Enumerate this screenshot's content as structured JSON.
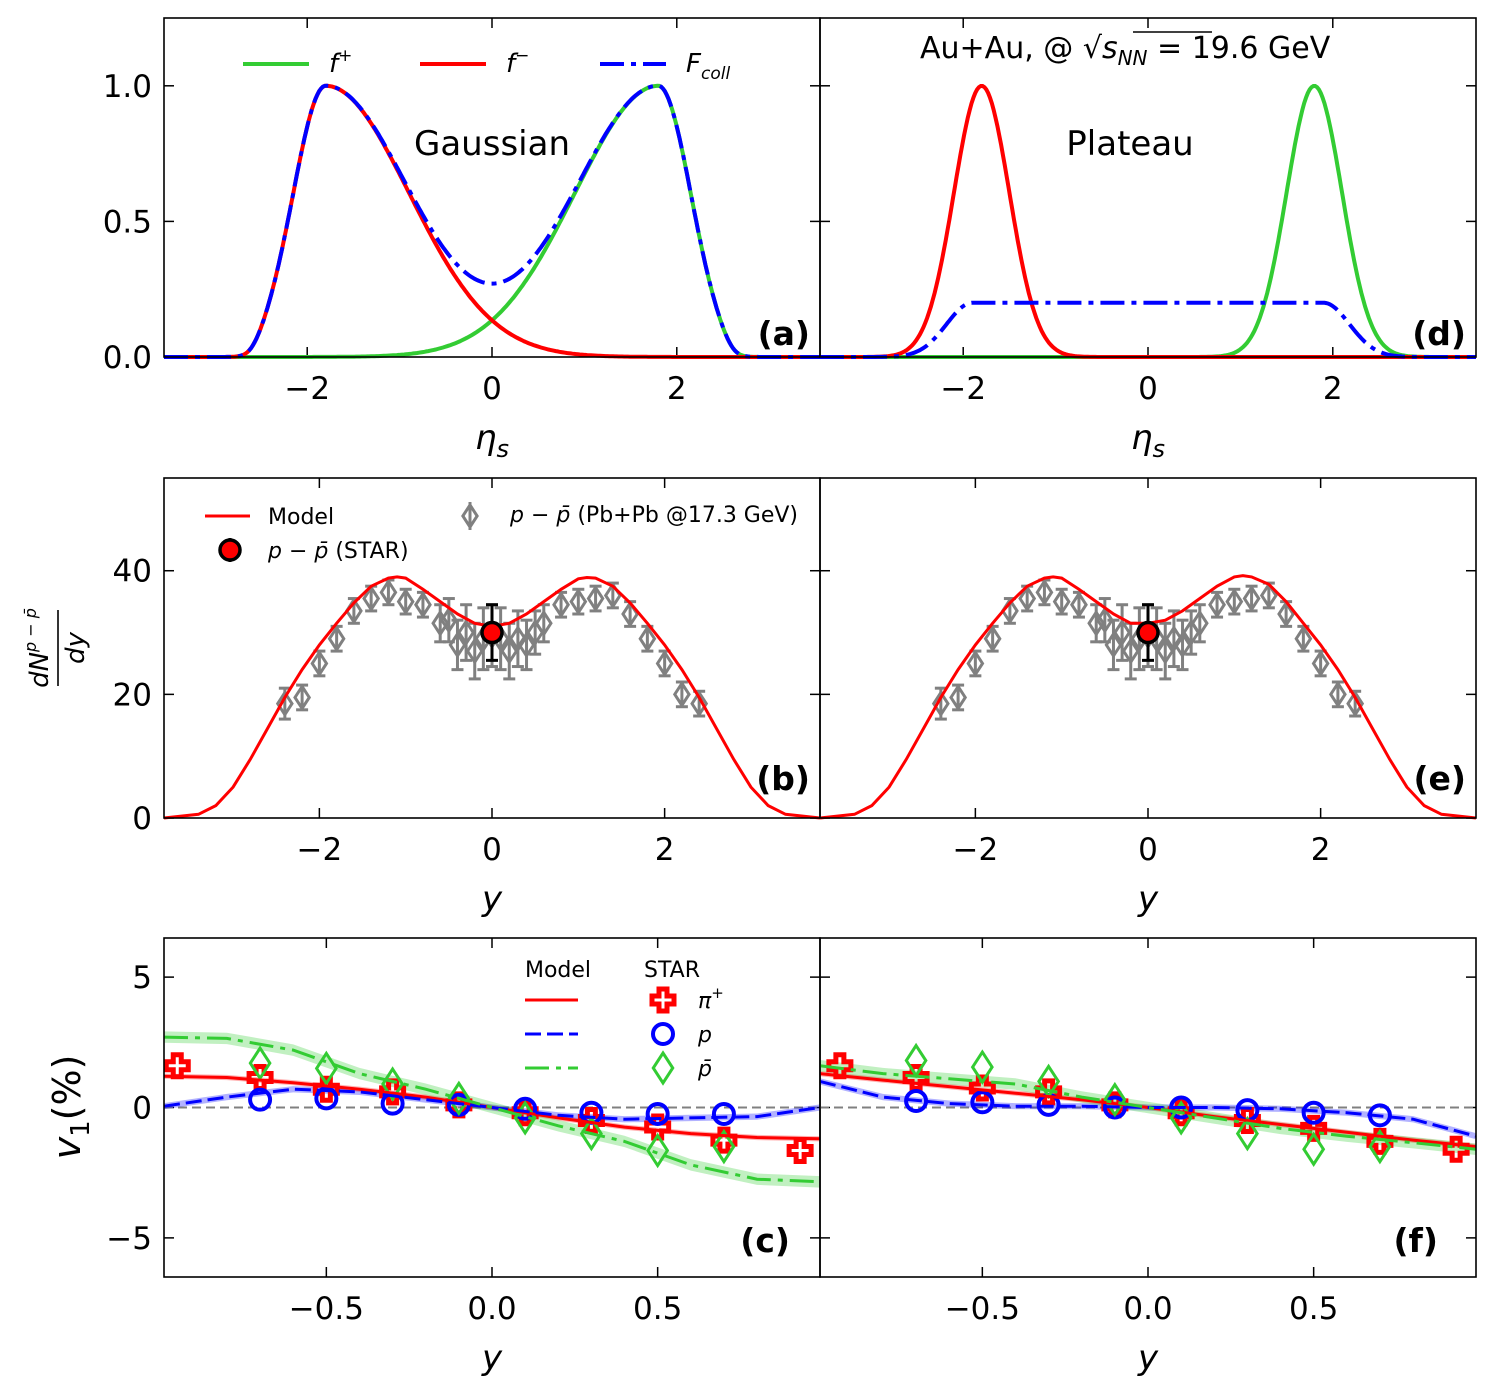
{
  "figure": {
    "title_annotation": "Au+Au, @ √s_NN = 19.6 GeV",
    "title_parts": {
      "prefix": "Au+Au, @ ",
      "sqrt": "√",
      "s": "s",
      "sub": "NN",
      "suffix": " = 19.6 GeV"
    },
    "colors": {
      "f_plus": "#33cc33",
      "f_minus": "#ff0000",
      "f_coll": "#0000ff",
      "sps": "#808080",
      "star_dot": "#ff0000",
      "proton": "#0000ff",
      "pion": "#ff0000",
      "pbar": "#33cc33"
    }
  },
  "chart_data": [
    {
      "id": "a",
      "type": "line",
      "panel_label": "(a)",
      "annotation": "Gaussian",
      "xlabel": "η_s",
      "xlabel_main": "η",
      "xlabel_sub": "s",
      "ylabel": "",
      "xlim": [
        -3.55,
        3.55
      ],
      "ylim": [
        0,
        1.25
      ],
      "xticks": [
        -2,
        0,
        2
      ],
      "yticks": [
        0.0,
        0.5,
        1.0
      ],
      "xtick_labels": [
        "−2",
        "0",
        "2"
      ],
      "ytick_labels": [
        "0.0",
        "0.5",
        "1.0"
      ],
      "legend": [
        {
          "label": "f⁺",
          "main": "f",
          "sup": "+",
          "style": "solid",
          "color": "#33cc33"
        },
        {
          "label": "f⁻",
          "main": "f",
          "sup": "−",
          "style": "solid",
          "color": "#ff0000"
        },
        {
          "label": "F_coll",
          "main": "F",
          "sub": "coll",
          "style": "dashdot",
          "color": "#0000ff"
        }
      ],
      "series": [
        {
          "name": "f+",
          "profile": "gaussian",
          "sign": 1,
          "peak": 1.8,
          "inner_width": 0.9,
          "outer_width": 0.35,
          "cut": 2.6
        },
        {
          "name": "f-",
          "profile": "gaussian",
          "sign": -1,
          "peak": 1.8,
          "inner_width": 0.9,
          "outer_width": 0.35,
          "cut": 2.6
        },
        {
          "name": "F_coll",
          "profile": "sum"
        }
      ]
    },
    {
      "id": "d",
      "type": "line",
      "panel_label": "(d)",
      "annotation": "Plateau",
      "xlabel": "η_s",
      "xlabel_main": "η",
      "xlabel_sub": "s",
      "xlim": [
        -3.55,
        3.55
      ],
      "ylim": [
        0,
        1.25
      ],
      "xticks": [
        -2,
        0,
        2
      ],
      "yticks": [
        0.0,
        0.5,
        1.0
      ],
      "xtick_labels": [
        "−2",
        "0",
        "2"
      ],
      "series": [
        {
          "name": "f+",
          "profile": "narrow",
          "sign": 1,
          "peak": 1.8,
          "width": 0.3
        },
        {
          "name": "f-",
          "profile": "narrow",
          "sign": -1,
          "peak": 1.8,
          "width": 0.3
        },
        {
          "name": "F_coll",
          "profile": "plateau",
          "height": 0.2,
          "flat_edge": 1.9,
          "fall": 0.28
        }
      ]
    },
    {
      "id": "b",
      "type": "line",
      "panel_label": "(b)",
      "xlabel": "y",
      "ylabel": "dN^{p−p̄}/dy",
      "ylabel_num": "dN",
      "ylabel_sup": "p − p̄",
      "ylabel_den": "dy",
      "xlim": [
        -3.8,
        3.8
      ],
      "ylim": [
        0,
        55
      ],
      "xticks": [
        -2,
        0,
        2
      ],
      "yticks": [
        0,
        20,
        40
      ],
      "xtick_labels": [
        "−2",
        "0",
        "2"
      ],
      "ytick_labels": [
        "0",
        "20",
        "40"
      ],
      "legend": [
        {
          "label": "Model",
          "marker": "line",
          "color": "#ff0000"
        },
        {
          "label": "p − p̄ (STAR)",
          "italic": "p − p̄",
          "rest": " (STAR)",
          "marker": "dot"
        },
        {
          "label": "p − p̄ (Pb+Pb @17.3 GeV)",
          "italic": "p − p̄",
          "rest": " (Pb+Pb @17.3 GeV)",
          "marker": "diamond"
        }
      ],
      "model": {
        "x": [
          -3.8,
          -3.4,
          -3.2,
          -3.0,
          -2.8,
          -2.6,
          -2.4,
          -2.2,
          -2.0,
          -1.8,
          -1.6,
          -1.4,
          -1.2,
          -1.1,
          -1.0,
          -0.8,
          -0.6,
          -0.4,
          -0.2,
          0.0,
          0.2,
          0.4,
          0.6,
          0.8,
          1.0,
          1.1,
          1.2,
          1.4,
          1.6,
          1.8,
          2.0,
          2.2,
          2.4,
          2.6,
          2.8,
          3.0,
          3.2,
          3.4,
          3.8
        ],
        "y": [
          0,
          0.6,
          2,
          5,
          9.5,
          14.5,
          19.5,
          24,
          28,
          31.5,
          34.8,
          37.5,
          38.8,
          39,
          38.8,
          37,
          35,
          33,
          31.5,
          31,
          31.5,
          33,
          35,
          37,
          38.7,
          38.9,
          38.8,
          37.5,
          34.8,
          31.5,
          28,
          24,
          19.5,
          14.5,
          9.5,
          5,
          2,
          0.6,
          0
        ]
      },
      "star": {
        "x": 0,
        "y": 30,
        "err": 4.5
      },
      "sps": {
        "x": [
          -2.4,
          -2.2,
          -2.0,
          -1.8,
          -1.6,
          -1.4,
          -1.2,
          -1.0,
          -0.8,
          -0.6,
          -0.5,
          -0.4,
          -0.3,
          -0.2,
          -0.1,
          0.0,
          0.1,
          0.2,
          0.3,
          0.4,
          0.5,
          0.6,
          0.8,
          1.0,
          1.2,
          1.4,
          1.6,
          1.8,
          2.0,
          2.2,
          2.4
        ],
        "y": [
          18.5,
          19.5,
          25,
          29,
          33.5,
          35.5,
          36.5,
          35,
          34.5,
          31.5,
          32,
          28,
          30,
          27,
          29,
          29.5,
          29,
          27,
          29,
          28,
          30,
          31.5,
          34.5,
          35,
          35.5,
          36,
          33,
          29,
          25,
          20,
          18.5
        ],
        "err": [
          2.5,
          2,
          2,
          2,
          2,
          2,
          2,
          2,
          2,
          3,
          3.5,
          4,
          4.5,
          4.5,
          5,
          5,
          5,
          4.5,
          4.5,
          4,
          3.5,
          3,
          2,
          2,
          2,
          2,
          2,
          2,
          2,
          2,
          2
        ]
      }
    },
    {
      "id": "e",
      "type": "line",
      "panel_label": "(e)",
      "xlabel": "y",
      "xlim": [
        -3.8,
        3.8
      ],
      "ylim": [
        0,
        55
      ],
      "xticks": [
        -2,
        0,
        2
      ],
      "yticks": [
        0,
        20,
        40
      ],
      "xtick_labels": [
        "−2",
        "0",
        "2"
      ],
      "model": {
        "x": [
          -3.8,
          -3.4,
          -3.2,
          -3.0,
          -2.8,
          -2.6,
          -2.4,
          -2.2,
          -2.0,
          -1.8,
          -1.6,
          -1.4,
          -1.2,
          -1.1,
          -1.0,
          -0.8,
          -0.6,
          -0.4,
          -0.2,
          0.0,
          0.2,
          0.4,
          0.6,
          0.8,
          1.0,
          1.1,
          1.2,
          1.4,
          1.6,
          1.8,
          2.0,
          2.2,
          2.4,
          2.6,
          2.8,
          3.0,
          3.2,
          3.4,
          3.8
        ],
        "y": [
          0,
          0.6,
          2,
          5,
          9.5,
          14.5,
          19.5,
          24,
          28,
          31.5,
          34.8,
          37.5,
          38.8,
          39,
          38.8,
          37,
          35,
          33,
          31.5,
          31.5,
          32,
          33.5,
          35.5,
          37.5,
          39,
          39.2,
          39,
          37.8,
          35,
          31.5,
          28,
          24,
          19.5,
          14.5,
          9.5,
          5,
          2,
          0.6,
          0
        ]
      },
      "star": {
        "x": 0,
        "y": 30,
        "err": 4.5
      },
      "sps": {
        "x": [
          -2.4,
          -2.2,
          -2.0,
          -1.8,
          -1.6,
          -1.4,
          -1.2,
          -1.0,
          -0.8,
          -0.6,
          -0.5,
          -0.4,
          -0.3,
          -0.2,
          -0.1,
          0.0,
          0.1,
          0.2,
          0.3,
          0.4,
          0.5,
          0.6,
          0.8,
          1.0,
          1.2,
          1.4,
          1.6,
          1.8,
          2.0,
          2.2,
          2.4
        ],
        "y": [
          18.5,
          19.5,
          25,
          29,
          33.5,
          35.5,
          36.5,
          35,
          34.5,
          31.5,
          32,
          28,
          30,
          27,
          29,
          29.5,
          29,
          27,
          29,
          28,
          30,
          31.5,
          34.5,
          35,
          35.5,
          36,
          33,
          29,
          25,
          20,
          18.5
        ],
        "err": [
          2.5,
          2,
          2,
          2,
          2,
          2,
          2,
          2,
          2,
          3,
          3.5,
          4,
          4.5,
          4.5,
          5,
          5,
          5,
          4.5,
          4.5,
          4,
          3.5,
          3,
          2,
          2,
          2,
          2,
          2,
          2,
          2,
          2,
          2
        ]
      }
    },
    {
      "id": "c",
      "type": "line",
      "panel_label": "(c)",
      "xlabel": "y",
      "ylabel": "v_1(%)",
      "ylabel_main": "v",
      "ylabel_sub": "1",
      "ylabel_rest": "(%)",
      "xlim": [
        -0.99,
        0.99
      ],
      "ylim": [
        -6.5,
        6.5
      ],
      "xticks": [
        -0.5,
        0.0,
        0.5
      ],
      "yticks": [
        -5,
        0,
        5
      ],
      "xtick_labels": [
        "−0.5",
        "0.0",
        "0.5"
      ],
      "ytick_labels": [
        "−5",
        "0",
        "5"
      ],
      "legend": {
        "header_model": "Model",
        "header_star": "STAR",
        "entries": [
          {
            "label": "π⁺",
            "main": "π",
            "sup": "+",
            "style": "solid",
            "color": "#ff0000",
            "marker": "plus"
          },
          {
            "label": "p",
            "main": "p",
            "style": "dashed",
            "color": "#0000ff",
            "marker": "circle"
          },
          {
            "label": "p̄",
            "main": "p̄",
            "style": "dashdot",
            "color": "#33cc33",
            "marker": "diamond"
          }
        ]
      },
      "model": [
        {
          "name": "pi+",
          "x": [
            -0.99,
            -0.8,
            -0.6,
            -0.4,
            -0.2,
            0.0,
            0.2,
            0.4,
            0.6,
            0.8,
            0.99
          ],
          "y": [
            1.2,
            1.15,
            0.95,
            0.7,
            0.4,
            0.0,
            -0.4,
            -0.75,
            -1.0,
            -1.15,
            -1.2
          ],
          "band": 0.1
        },
        {
          "name": "p",
          "x": [
            -0.99,
            -0.8,
            -0.6,
            -0.4,
            -0.2,
            0.0,
            0.2,
            0.4,
            0.6,
            0.8,
            0.99
          ],
          "y": [
            0.05,
            0.4,
            0.7,
            0.6,
            0.3,
            0.0,
            -0.3,
            -0.45,
            -0.4,
            -0.35,
            0.0
          ],
          "band": 0.12
        },
        {
          "name": "pbar",
          "x": [
            -0.99,
            -0.8,
            -0.6,
            -0.4,
            -0.2,
            0.0,
            0.2,
            0.4,
            0.6,
            0.8,
            0.99
          ],
          "y": [
            2.7,
            2.65,
            2.2,
            1.3,
            0.7,
            0.0,
            -0.7,
            -1.3,
            -2.2,
            -2.75,
            -2.85
          ],
          "band": 0.22
        }
      ],
      "star": [
        {
          "name": "pi+",
          "x": [
            -0.95,
            -0.7,
            -0.5,
            -0.3,
            -0.1,
            0.1,
            0.3,
            0.5,
            0.7,
            0.93
          ],
          "y": [
            1.6,
            1.15,
            0.7,
            0.6,
            0.1,
            -0.2,
            -0.5,
            -0.75,
            -1.25,
            -1.65
          ]
        },
        {
          "name": "p",
          "x": [
            -0.7,
            -0.5,
            -0.3,
            -0.1,
            0.1,
            0.3,
            0.5,
            0.7
          ],
          "y": [
            0.3,
            0.35,
            0.15,
            0.1,
            -0.05,
            -0.2,
            -0.25,
            -0.25
          ]
        },
        {
          "name": "pbar",
          "x": [
            -0.7,
            -0.5,
            -0.3,
            -0.1,
            0.1,
            0.3,
            0.5,
            0.7
          ],
          "y": [
            1.7,
            1.5,
            0.9,
            0.35,
            -0.4,
            -1.0,
            -1.65,
            -1.5
          ]
        }
      ]
    },
    {
      "id": "f",
      "type": "line",
      "panel_label": "(f)",
      "xlabel": "y",
      "xlim": [
        -0.99,
        0.99
      ],
      "ylim": [
        -6.5,
        6.5
      ],
      "xticks": [
        -0.5,
        0.0,
        0.5
      ],
      "yticks": [
        -5,
        0,
        5
      ],
      "xtick_labels": [
        "−0.5",
        "0.0",
        "0.5"
      ],
      "model": [
        {
          "name": "pi+",
          "x": [
            -0.99,
            -0.8,
            -0.6,
            -0.4,
            -0.2,
            0.0,
            0.2,
            0.4,
            0.6,
            0.8,
            0.99
          ],
          "y": [
            1.3,
            1.05,
            0.8,
            0.55,
            0.3,
            0.0,
            -0.35,
            -0.65,
            -0.95,
            -1.25,
            -1.5
          ],
          "band": 0.1
        },
        {
          "name": "p",
          "x": [
            -0.99,
            -0.8,
            -0.6,
            -0.4,
            -0.2,
            0.0,
            0.2,
            0.4,
            0.6,
            0.8,
            0.99
          ],
          "y": [
            1.0,
            0.4,
            0.15,
            0.05,
            0.05,
            0.0,
            0.0,
            -0.05,
            -0.2,
            -0.45,
            -1.1
          ],
          "band": 0.12
        },
        {
          "name": "pbar",
          "x": [
            -0.99,
            -0.8,
            -0.6,
            -0.4,
            -0.2,
            0.0,
            0.2,
            0.4,
            0.6,
            0.8,
            0.99
          ],
          "y": [
            1.6,
            1.3,
            1.1,
            0.9,
            0.4,
            0.0,
            -0.4,
            -0.8,
            -1.1,
            -1.35,
            -1.6
          ],
          "band": 0.22
        }
      ],
      "star": [
        {
          "name": "pi+",
          "x": [
            -0.93,
            -0.7,
            -0.5,
            -0.3,
            -0.1,
            0.1,
            0.3,
            0.5,
            0.7,
            0.93
          ],
          "y": [
            1.6,
            1.15,
            0.75,
            0.6,
            0.1,
            -0.2,
            -0.5,
            -0.8,
            -1.3,
            -1.6
          ]
        },
        {
          "name": "p",
          "x": [
            -0.7,
            -0.5,
            -0.3,
            -0.1,
            0.1,
            0.3,
            0.5,
            0.7
          ],
          "y": [
            0.25,
            0.2,
            0.1,
            0.0,
            0.0,
            -0.1,
            -0.2,
            -0.3
          ]
        },
        {
          "name": "pbar",
          "x": [
            -0.7,
            -0.5,
            -0.3,
            -0.1,
            0.1,
            0.3,
            0.5,
            0.7
          ],
          "y": [
            1.8,
            1.55,
            1.0,
            0.3,
            -0.4,
            -1.0,
            -1.6,
            -1.5
          ]
        }
      ]
    }
  ]
}
